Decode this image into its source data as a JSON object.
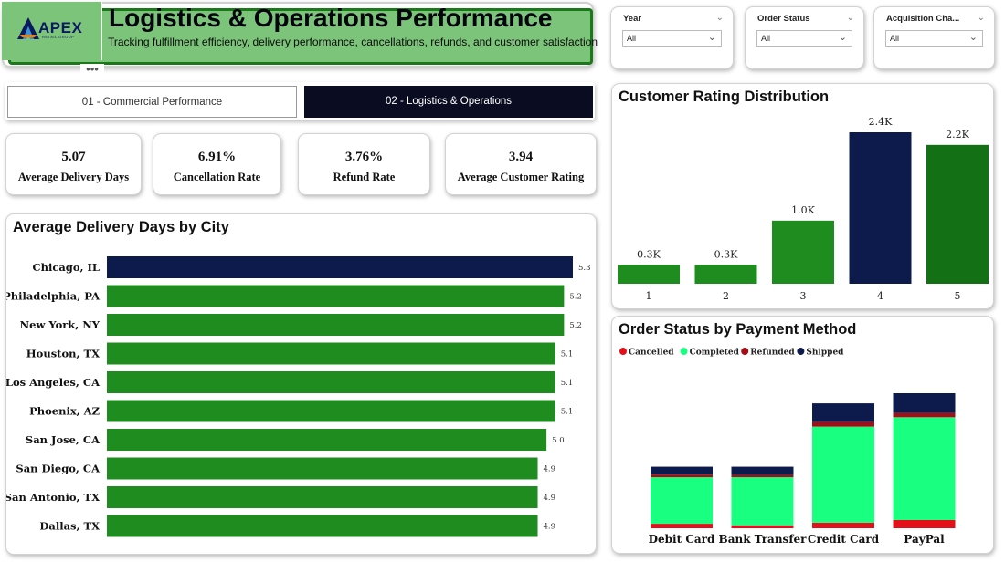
{
  "header": {
    "logo_name": "APEX",
    "logo_tagline": "RETAIL GROUP",
    "title": "Logistics & Operations Performance",
    "subtitle": "Tracking fulfillment efficiency, delivery performance, cancellations, refunds, and customer satisfaction",
    "more_icon": "more-horizontal-icon",
    "colors": {
      "banner": "#7cc47a",
      "banner_border": "#1a7a1a",
      "dark": "#0a0c22"
    }
  },
  "filters": [
    {
      "label": "Year",
      "value": "All"
    },
    {
      "label": "Order Status",
      "value": "All"
    },
    {
      "label": "Acquisition Cha...",
      "value": "All"
    }
  ],
  "tabs": [
    {
      "label": "01 - Commercial Performance",
      "active": false
    },
    {
      "label": "02 - Logistics & Operations",
      "active": true
    }
  ],
  "kpis": [
    {
      "value": "5.07",
      "label": "Average Delivery Days"
    },
    {
      "value": "6.91%",
      "label": "Cancellation Rate"
    },
    {
      "value": "3.76%",
      "label": "Refund Rate"
    },
    {
      "value": "3.94",
      "label": "Average Customer Rating"
    }
  ],
  "chart_data": [
    {
      "type": "bar",
      "orientation": "horizontal",
      "title": "Average Delivery Days by City",
      "categories": [
        "Chicago, IL",
        "Philadelphia, PA",
        "New York, NY",
        "Houston, TX",
        "Los Angeles, CA",
        "Phoenix, AZ",
        "San Jose, CA",
        "San Diego, CA",
        "San Antonio, TX",
        "Dallas, TX"
      ],
      "values": [
        5.3,
        5.2,
        5.2,
        5.1,
        5.1,
        5.1,
        5.0,
        4.9,
        4.9,
        4.9
      ],
      "data_labels": [
        "5.3",
        "5.2",
        "5.2",
        "5.1",
        "5.1",
        "5.1",
        "5.0",
        "4.9",
        "4.9",
        "4.9"
      ],
      "highlight_index": 0,
      "colors": {
        "bar": "#1e8c1e",
        "highlight": "#0d1b4c"
      },
      "xlim": [
        0,
        5.3
      ],
      "grid": false
    },
    {
      "type": "bar",
      "title": "Customer Rating Distribution",
      "categories": [
        "1",
        "2",
        "3",
        "4",
        "5"
      ],
      "values": [
        300,
        300,
        1000,
        2400,
        2200
      ],
      "data_labels": [
        "0.3K",
        "0.3K",
        "1.0K",
        "2.4K",
        "2.2K"
      ],
      "colors": [
        "#1e8c1e",
        "#1e8c1e",
        "#1e8c1e",
        "#0d1b4c",
        "#147014"
      ],
      "ylim": [
        0,
        2400
      ],
      "grid": false
    },
    {
      "type": "bar",
      "stacked": true,
      "title": "Order Status by Payment Method",
      "categories": [
        "Debit Card",
        "Bank Transfer",
        "Credit Card",
        "PayPal"
      ],
      "series": [
        {
          "name": "Cancelled",
          "color": "#e3101a",
          "values": [
            60,
            40,
            75,
            110
          ]
        },
        {
          "name": "Completed",
          "color": "#19ff80",
          "values": [
            620,
            640,
            1280,
            1370
          ]
        },
        {
          "name": "Refunded",
          "color": "#a50c15",
          "values": [
            35,
            30,
            60,
            55
          ]
        },
        {
          "name": "Shipped",
          "color": "#0d1b4c",
          "values": [
            105,
            110,
            250,
            265
          ]
        }
      ],
      "legend": "top-left",
      "grid": false
    }
  ]
}
